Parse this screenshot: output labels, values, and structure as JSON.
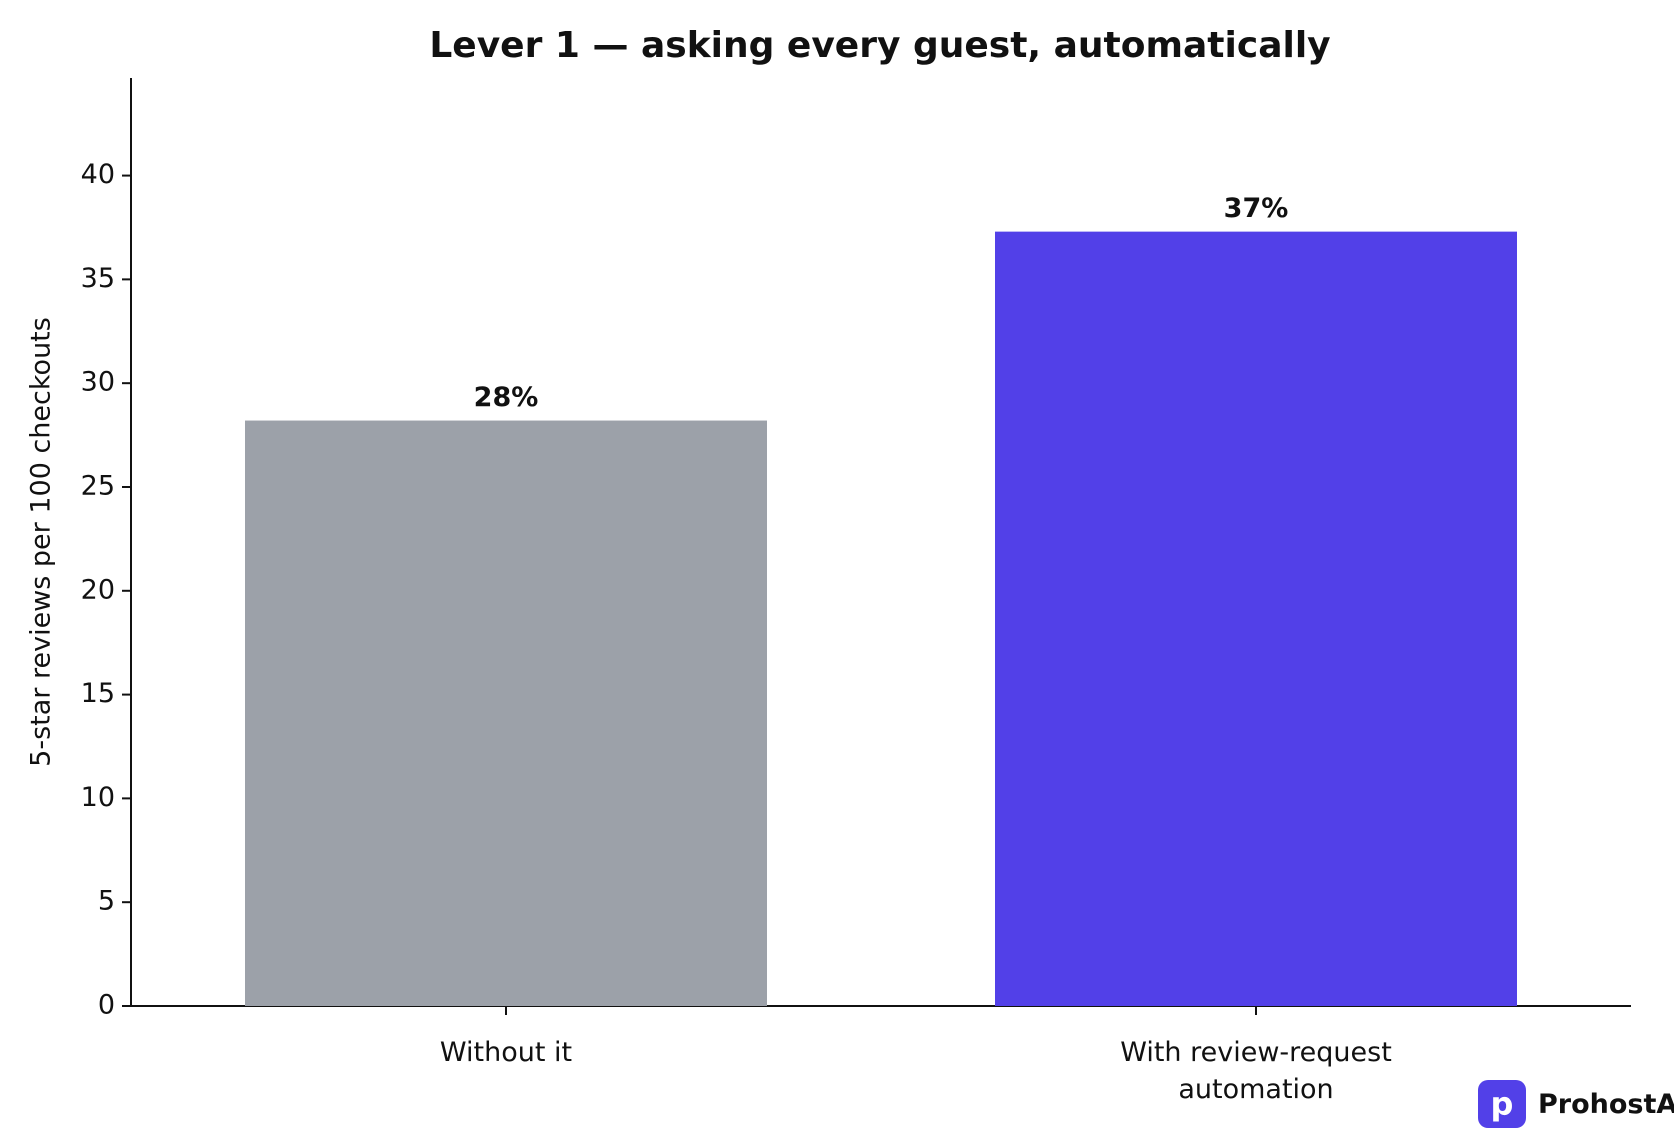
{
  "chart_data": {
    "type": "bar",
    "title": "Lever 1 — asking every guest, automatically",
    "ylabel": "5-star reviews per 100 checkouts",
    "categories": [
      "Without it",
      "With review-request automation"
    ],
    "values": [
      28.2,
      37.3
    ],
    "value_labels": [
      "28%",
      "37%"
    ],
    "colors": [
      "#9ca1a9",
      "#5240e8"
    ],
    "ylim": [
      0,
      44.7
    ],
    "yticks": [
      0,
      5,
      10,
      15,
      20,
      25,
      30,
      35,
      40
    ],
    "grid": false
  },
  "brand": {
    "icon": "p",
    "name": "ProhostAI"
  }
}
